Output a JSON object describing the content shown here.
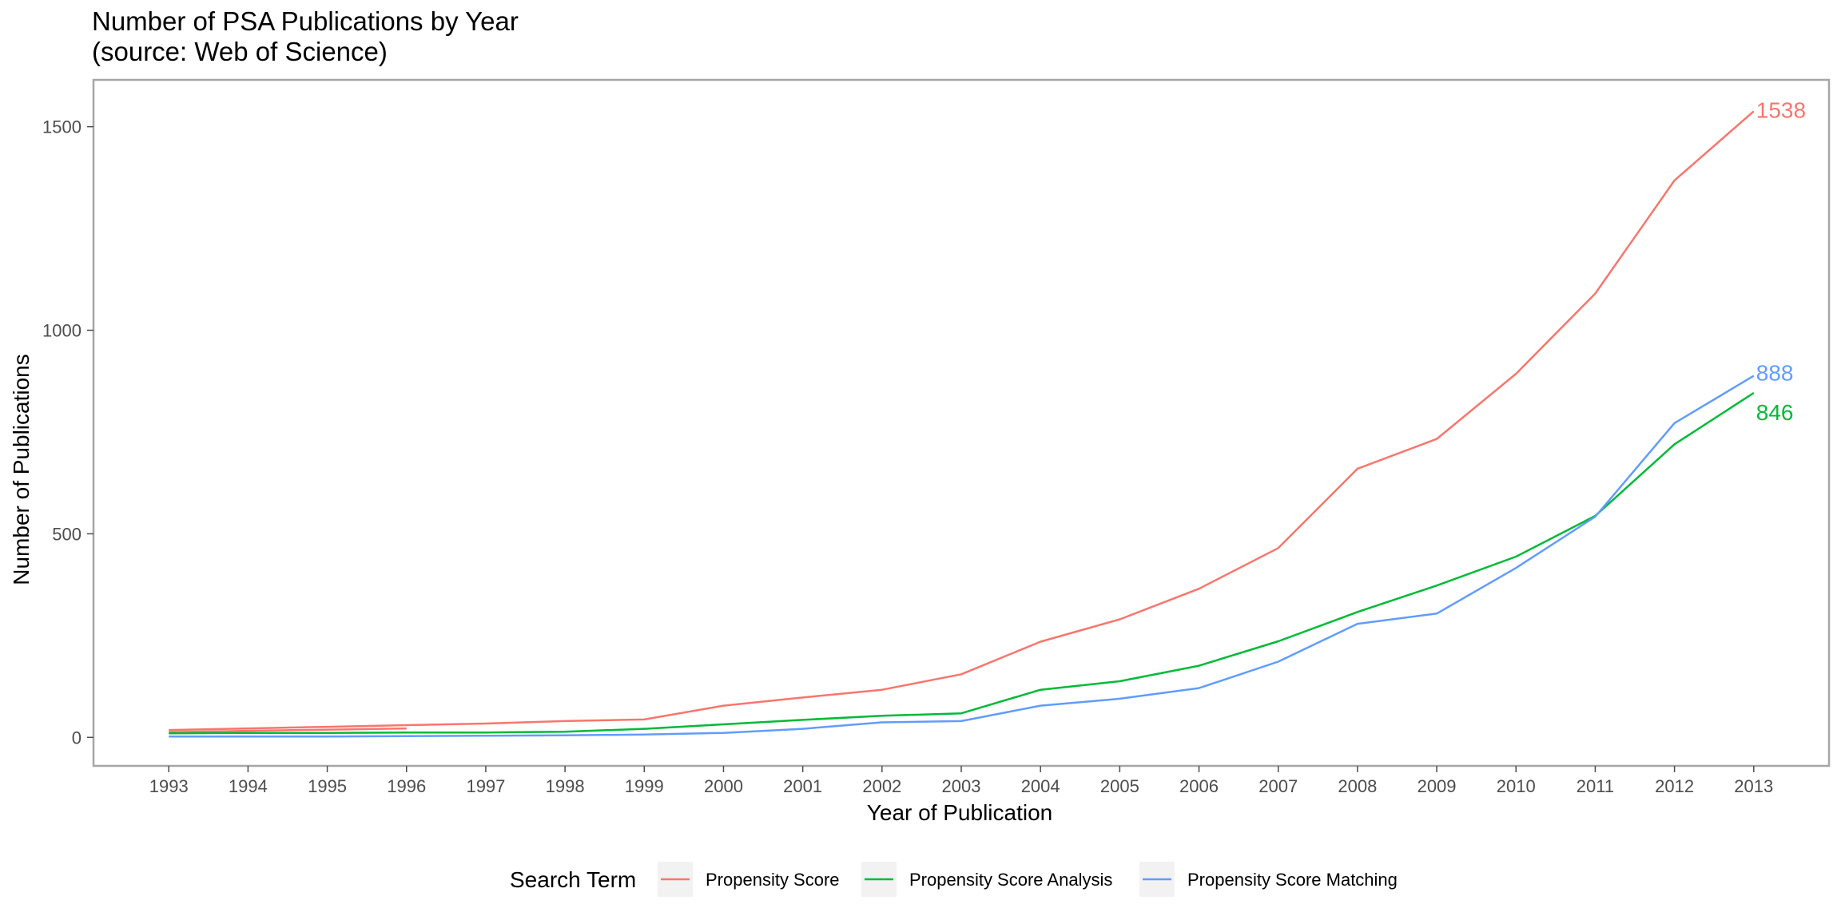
{
  "chart_data": {
    "type": "line",
    "title_lines": [
      "Number of PSA Publications by Year",
      "(source: Web of Science)"
    ],
    "xlabel": "Year of Publication",
    "ylabel": "Number of Publications",
    "x": [
      1993,
      1994,
      1995,
      1996,
      1997,
      1998,
      1999,
      2000,
      2001,
      2002,
      2003,
      2004,
      2005,
      2006,
      2007,
      2008,
      2009,
      2010,
      2011,
      2012,
      2013
    ],
    "x_tick_labels": [
      "1993",
      "1994",
      "1995",
      "1996",
      "1997",
      "1998",
      "1999",
      "2000",
      "2001",
      "2002",
      "2003",
      "2004",
      "2005",
      "2006",
      "2007",
      "2008",
      "2009",
      "2010",
      "2011",
      "2012",
      "2013"
    ],
    "xlim": [
      1992.05,
      2013.95
    ],
    "y_ticks": [
      0,
      500,
      1000,
      1500
    ],
    "y_tick_labels": [
      "0",
      "500",
      "1000",
      "1500"
    ],
    "ylim": [
      -70,
      1615
    ],
    "grid": false,
    "legend": {
      "title": "Search Term",
      "position": "bottom"
    },
    "series": [
      {
        "name": "Propensity Score",
        "color": "#F8766D",
        "values": [
          18,
          22,
          26,
          30,
          34,
          40,
          44,
          78,
          98,
          117,
          155,
          235,
          290,
          365,
          465,
          660,
          733,
          893,
          1090,
          1368,
          1538
        ],
        "end_label": "1538"
      },
      {
        "name": "Propensity Score Analysis",
        "color": "#00BA38",
        "values": [
          10,
          11,
          11,
          12,
          12,
          14,
          21,
          32,
          43,
          53,
          59,
          117,
          138,
          176,
          236,
          308,
          373,
          444,
          544,
          720,
          846
        ],
        "end_label": "846"
      },
      {
        "name": "Propensity Score Matching",
        "color": "#619CFF",
        "values": [
          2,
          2,
          2,
          3,
          4,
          5,
          7,
          11,
          21,
          37,
          40,
          78,
          95,
          121,
          186,
          279,
          304,
          416,
          542,
          772,
          888
        ],
        "end_label": "888"
      }
    ],
    "extra_segments": [
      {
        "series": "Propensity Score",
        "x": [
          1993,
          1996
        ],
        "values": [
          13,
          22
        ]
      }
    ]
  }
}
